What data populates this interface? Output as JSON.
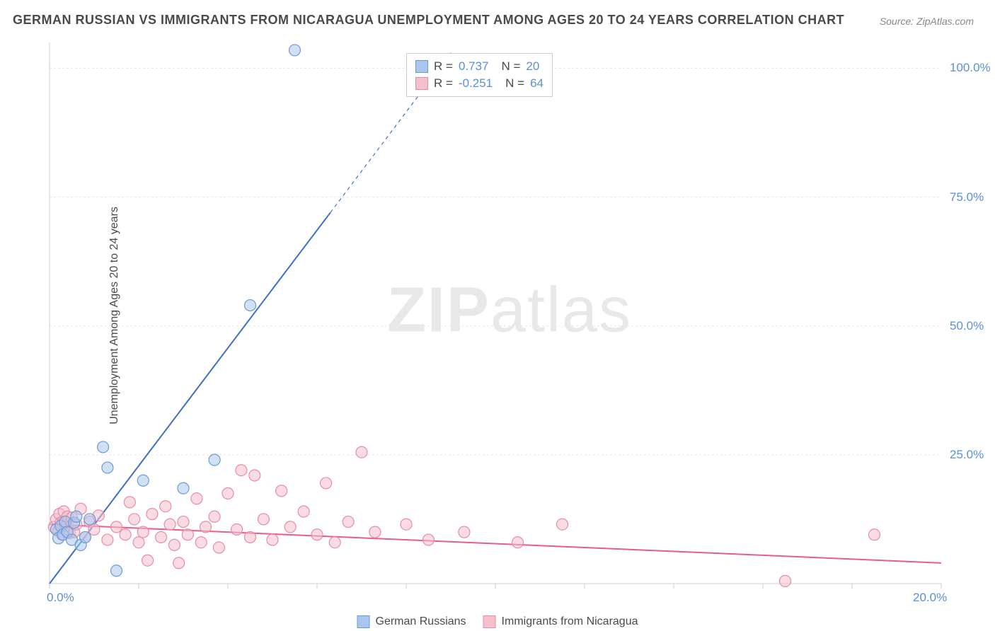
{
  "title": "GERMAN RUSSIAN VS IMMIGRANTS FROM NICARAGUA UNEMPLOYMENT AMONG AGES 20 TO 24 YEARS CORRELATION CHART",
  "source": "Source: ZipAtlas.com",
  "y_axis_label": "Unemployment Among Ages 20 to 24 years",
  "watermark_bold": "ZIP",
  "watermark_light": "atlas",
  "chart": {
    "type": "scatter",
    "xlim": [
      0,
      20
    ],
    "ylim": [
      0,
      105
    ],
    "x_ticks": [
      0,
      2,
      4,
      6,
      8,
      10,
      12,
      14,
      16,
      18,
      20
    ],
    "y_ticks": [
      25,
      50,
      75,
      100
    ],
    "x_tick_labels": {
      "0": "0.0%",
      "20": "20.0%"
    },
    "y_tick_labels": {
      "25": "25.0%",
      "50": "50.0%",
      "75": "75.0%",
      "100": "100.0%"
    },
    "grid_color": "#e5e5e5",
    "axis_color": "#cccccc",
    "background_color": "#ffffff",
    "marker_radius": 8,
    "marker_opacity": 0.55,
    "line_width": 2,
    "dash_pattern": "5,5"
  },
  "series": [
    {
      "name": "German Russians",
      "color_fill": "#a9c7ec",
      "color_stroke": "#6b9bd6",
      "line_color": "#3d6fc9",
      "R": "0.737",
      "N": "20",
      "trend": {
        "x1": 0,
        "y1": 0,
        "x2_solid": 6.3,
        "y2_solid": 72,
        "x2_dash": 9.0,
        "y2_dash": 103
      },
      "points": [
        [
          0.15,
          10.5
        ],
        [
          0.2,
          8.8
        ],
        [
          0.25,
          11.2
        ],
        [
          0.3,
          9.5
        ],
        [
          0.35,
          12.0
        ],
        [
          0.4,
          10.0
        ],
        [
          0.5,
          8.5
        ],
        [
          0.55,
          11.8
        ],
        [
          0.6,
          13.0
        ],
        [
          0.7,
          7.5
        ],
        [
          0.8,
          9.0
        ],
        [
          0.9,
          12.5
        ],
        [
          1.2,
          26.5
        ],
        [
          1.3,
          22.5
        ],
        [
          1.5,
          2.5
        ],
        [
          2.1,
          20.0
        ],
        [
          3.0,
          18.5
        ],
        [
          3.7,
          24.0
        ],
        [
          4.5,
          54.0
        ],
        [
          5.5,
          103.5
        ]
      ]
    },
    {
      "name": "Immigrants from Nicaragua",
      "color_fill": "#f4c0cc",
      "color_stroke": "#e98ba4",
      "line_color": "#e85d8a",
      "R": "-0.251",
      "N": "64",
      "trend": {
        "x1": 0,
        "y1": 11.5,
        "x2_solid": 20,
        "y2_solid": 4.0
      },
      "points": [
        [
          0.1,
          11.0
        ],
        [
          0.15,
          12.5
        ],
        [
          0.2,
          10.2
        ],
        [
          0.22,
          13.5
        ],
        [
          0.25,
          11.8
        ],
        [
          0.28,
          9.5
        ],
        [
          0.3,
          12.0
        ],
        [
          0.32,
          14.0
        ],
        [
          0.35,
          10.5
        ],
        [
          0.38,
          11.2
        ],
        [
          0.4,
          13.0
        ],
        [
          0.45,
          9.8
        ],
        [
          0.5,
          12.8
        ],
        [
          0.55,
          10.0
        ],
        [
          0.6,
          11.5
        ],
        [
          0.7,
          14.5
        ],
        [
          0.8,
          9.0
        ],
        [
          0.9,
          12.0
        ],
        [
          1.0,
          10.5
        ],
        [
          1.1,
          13.2
        ],
        [
          1.3,
          8.5
        ],
        [
          1.5,
          11.0
        ],
        [
          1.7,
          9.5
        ],
        [
          1.8,
          15.8
        ],
        [
          1.9,
          12.5
        ],
        [
          2.0,
          8.0
        ],
        [
          2.1,
          10.0
        ],
        [
          2.2,
          4.5
        ],
        [
          2.3,
          13.5
        ],
        [
          2.5,
          9.0
        ],
        [
          2.6,
          15.0
        ],
        [
          2.7,
          11.5
        ],
        [
          2.8,
          7.5
        ],
        [
          2.9,
          4.0
        ],
        [
          3.0,
          12.0
        ],
        [
          3.1,
          9.5
        ],
        [
          3.3,
          16.5
        ],
        [
          3.4,
          8.0
        ],
        [
          3.5,
          11.0
        ],
        [
          3.7,
          13.0
        ],
        [
          3.8,
          7.0
        ],
        [
          4.0,
          17.5
        ],
        [
          4.2,
          10.5
        ],
        [
          4.3,
          22.0
        ],
        [
          4.5,
          9.0
        ],
        [
          4.6,
          21.0
        ],
        [
          4.8,
          12.5
        ],
        [
          5.0,
          8.5
        ],
        [
          5.2,
          18.0
        ],
        [
          5.4,
          11.0
        ],
        [
          5.7,
          14.0
        ],
        [
          6.0,
          9.5
        ],
        [
          6.2,
          19.5
        ],
        [
          6.4,
          8.0
        ],
        [
          6.7,
          12.0
        ],
        [
          7.0,
          25.5
        ],
        [
          7.3,
          10.0
        ],
        [
          8.0,
          11.5
        ],
        [
          8.5,
          8.5
        ],
        [
          9.3,
          10.0
        ],
        [
          10.5,
          8.0
        ],
        [
          11.5,
          11.5
        ],
        [
          16.5,
          0.5
        ],
        [
          18.5,
          9.5
        ]
      ]
    }
  ],
  "legend": {
    "series1_label": "German Russians",
    "series2_label": "Immigrants from Nicaragua"
  },
  "stats_labels": {
    "R": "R =",
    "N": "N ="
  }
}
